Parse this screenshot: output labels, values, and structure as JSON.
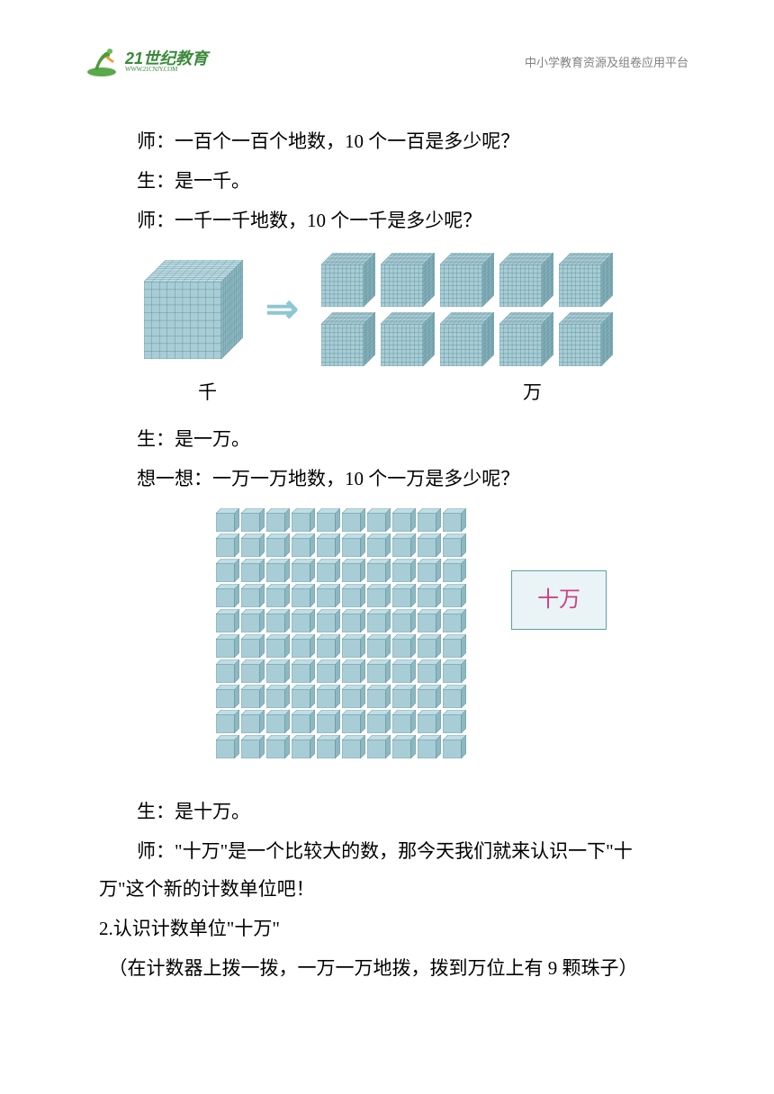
{
  "header": {
    "logo_main": "21世纪教育",
    "logo_sub": "WWW.21CNJY.COM",
    "header_right": "中小学教育资源及组卷应用平台"
  },
  "content": {
    "line1": "师：一百个一百个地数，10 个一百是多少呢？",
    "line2": "生：是一千。",
    "line3": "师：一千一千地数，10 个一千是多少呢？",
    "label_thousand": "千",
    "label_wan": "万",
    "line4": "生：是一万。",
    "line5": "想一想：一万一万地数，10 个一万是多少呢？",
    "badge": "十万",
    "line6": "生：是十万。",
    "line7": "师：\"十万\"是一个比较大的数，那今天我们就来认识一下\"十万\"这个新的计数单位吧！",
    "line8": "2.认识计数单位\"十万\"",
    "line9": "（在计数器上拨一拨，一万一万地拨，拨到万位上有 9 颗珠子）"
  },
  "colors": {
    "cube_fill": "#a8cdd6",
    "cube_stroke": "#5a8a95",
    "cube_top": "#c0dde5",
    "cube_side": "#8db8c2",
    "arrow": "#8dc6d4",
    "badge_border": "#5ba0b0",
    "badge_bg": "#eaf4f7",
    "badge_text": "#d04080",
    "logo_green": "#3a8a3a",
    "text": "#000000",
    "header_gray": "#808080"
  }
}
